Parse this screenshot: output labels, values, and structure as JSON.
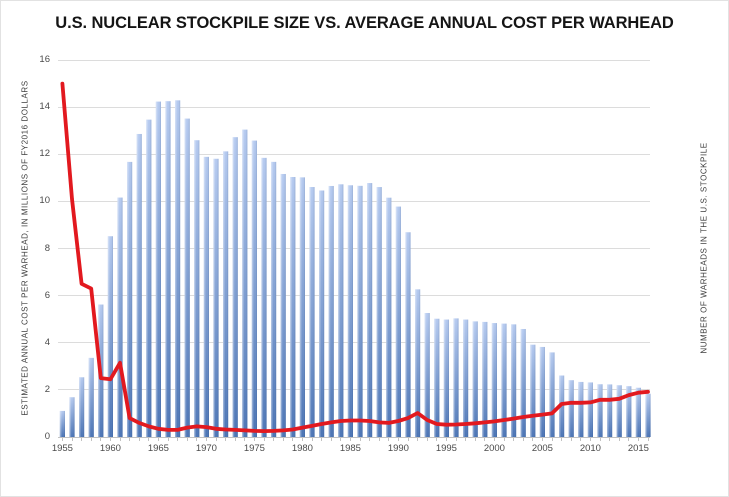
{
  "chart_data": {
    "type": "combo-bar-line",
    "title": "U.S. NUCLEAR STOCKPILE SIZE VS. AVERAGE ANNUAL COST PER WARHEAD",
    "year_start": 1955,
    "year_end": 2016,
    "grid": true,
    "legend": "none",
    "left_axis": {
      "label": "ESTIMATED ANNUAL COST PER WARHEAD, IN MILLIONS OF FY2016 DOLLARS",
      "min": 0,
      "max": 16,
      "ticks": [
        0,
        2,
        4,
        6,
        8,
        10,
        12,
        14,
        16
      ]
    },
    "right_axis": {
      "label": "NUMBER OF WARHEADS IN THE U.S. STOCKPILE",
      "implied_min": 0,
      "implied_max": 35000
    },
    "x_axis": {
      "labels": [
        "1955",
        "1960",
        "1965",
        "1970",
        "1975",
        "1980",
        "1985",
        "1990",
        "1995",
        "2000",
        "2005",
        "2010",
        "2015"
      ],
      "minor_tick_every_year": true
    },
    "series": [
      {
        "name": "number-of-warheads-in-us-stockpile",
        "type": "bar",
        "axis": "right",
        "color_top": "#b5caf0",
        "color_bottom": "#4872b4",
        "values": [
          2422,
          3692,
          5543,
          7345,
          12298,
          18638,
          22229,
          25540,
          28133,
          29463,
          31139,
          31175,
          31255,
          29561,
          27552,
          26008,
          25830,
          26516,
          27835,
          28537,
          27519,
          25914,
          25542,
          24418,
          24138,
          24104,
          23208,
          22886,
          23305,
          23459,
          23368,
          23317,
          23575,
          23205,
          22217,
          21392,
          19008,
          13708,
          11511,
          10979,
          10904,
          11011,
          10903,
          10732,
          10685,
          10577,
          10526,
          10457,
          10027,
          8570,
          8360,
          7853,
          5709,
          5273,
          5113,
          5066,
          4897,
          4881,
          4804,
          4717,
          4571,
          4018
        ]
      },
      {
        "name": "estimated-annual-cost-per-warhead-millions-fy2016",
        "type": "line",
        "axis": "left",
        "color": "#e2191f",
        "values": [
          15.0,
          10.1,
          6.5,
          6.3,
          2.5,
          2.45,
          3.15,
          0.8,
          0.6,
          0.45,
          0.35,
          0.3,
          0.3,
          0.4,
          0.45,
          0.42,
          0.35,
          0.32,
          0.3,
          0.28,
          0.26,
          0.25,
          0.26,
          0.28,
          0.32,
          0.4,
          0.47,
          0.55,
          0.62,
          0.68,
          0.7,
          0.7,
          0.68,
          0.62,
          0.6,
          0.68,
          0.8,
          1.02,
          0.72,
          0.55,
          0.52,
          0.53,
          0.55,
          0.58,
          0.62,
          0.66,
          0.72,
          0.78,
          0.85,
          0.9,
          0.95,
          1.0,
          1.4,
          1.45,
          1.45,
          1.47,
          1.58,
          1.58,
          1.62,
          1.78,
          1.88,
          1.92
        ]
      }
    ]
  }
}
